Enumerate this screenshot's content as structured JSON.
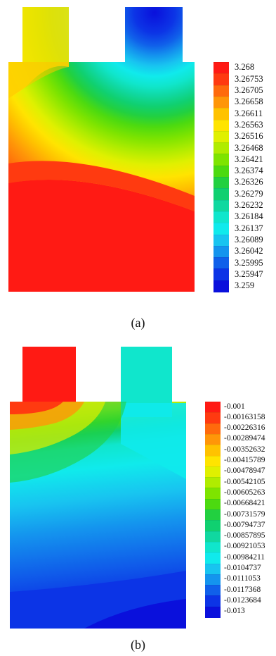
{
  "panels": [
    {
      "caption": "(a)",
      "legend": {
        "labels": [
          "3.268",
          "3.26753",
          "3.26705",
          "3.26658",
          "3.26611",
          "3.26563",
          "3.26516",
          "3.26468",
          "3.26421",
          "3.26374",
          "3.26326",
          "3.26279",
          "3.26232",
          "3.26184",
          "3.26137",
          "3.26089",
          "3.26042",
          "3.25995",
          "3.25947",
          "3.259"
        ],
        "colors": [
          "#ff1a14",
          "#ff3a10",
          "#ff6a0c",
          "#ff9608",
          "#ffc200",
          "#ffe400",
          "#e0f000",
          "#b0ec00",
          "#7ee400",
          "#4cda10",
          "#22d040",
          "#10d070",
          "#10d8a0",
          "#10e6cc",
          "#10eaec",
          "#18c4f0",
          "#1494ee",
          "#1060ea",
          "#0c34e6",
          "#0a10dc"
        ]
      },
      "field": {
        "scale": "max-top-left-to-min-top-right",
        "min_color": "#0a10dc",
        "max_color": "#ff1a14"
      }
    },
    {
      "caption": "(b)",
      "legend": {
        "labels": [
          "-0.001",
          "-0.00163158",
          "-0.00226316",
          "-0.00289474",
          "-0.00352632",
          "-0.00415789",
          "-0.00478947",
          "-0.00542105",
          "-0.00605263",
          "-0.00668421",
          "-0.00731579",
          "-0.00794737",
          "-0.00857895",
          "-0.00921053",
          "-0.00984211",
          "-0.0104737",
          "-0.0111053",
          "-0.0117368",
          "-0.0123684",
          "-0.013"
        ],
        "colors": [
          "#ff1a14",
          "#ff3a10",
          "#ff6a0c",
          "#ff9608",
          "#ffc200",
          "#ffe400",
          "#e0f000",
          "#b0ec00",
          "#7ee400",
          "#4cda10",
          "#22d040",
          "#10d070",
          "#10d8a0",
          "#10e6cc",
          "#10eaec",
          "#18c4f0",
          "#1494ee",
          "#1060ea",
          "#0c34e6",
          "#0a10dc"
        ]
      },
      "field": {
        "scale": "max-top-left-to-min-bottom",
        "min_color": "#0a10dc",
        "max_color": "#ff1a14"
      }
    }
  ]
}
